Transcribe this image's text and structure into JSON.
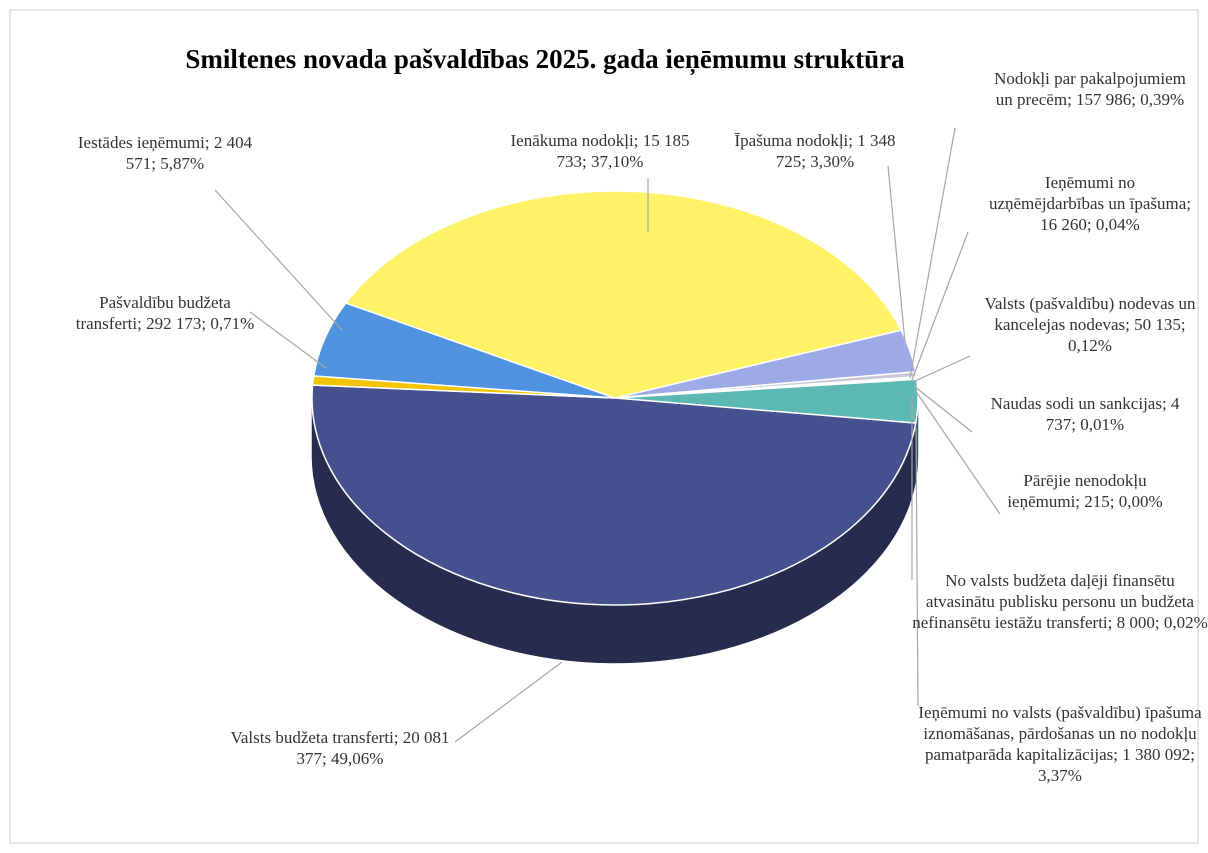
{
  "chart_data": {
    "type": "pie",
    "title": "Smiltenes novada pašvaldības 2025. gada ieņēmumu struktūra",
    "label_separator": "; ",
    "categories": [
      "Ienākuma nodokļi",
      "Īpašuma nodokļi",
      "Nodokļi par pakalpojumiem un precēm",
      "Ieņēmumi no uzņēmējdarbības un īpašuma",
      "Valsts (pašvaldību) nodevas un kancelejas nodevas",
      "Naudas sodi un sankcijas",
      "Pārējie nenodokļu ieņēmumi",
      "No valsts budžeta daļēji finansētu atvasinātu publisku personu un budžeta nefinansētu iestāžu transferti",
      "Ieņēmumi no valsts (pašvaldību) īpašuma iznomāšanas, pārdošanas un no nodokļu pamatparāda kapitalizācijas",
      "Valsts budžeta transferti",
      "Pašvaldību budžeta transferti",
      "Iestādes ieņēmumi"
    ],
    "values": [
      15185733,
      1348725,
      157986,
      16260,
      50135,
      4737,
      215,
      8000,
      1380092,
      20081377,
      292173,
      2404571
    ],
    "value_labels": [
      "15 185 733",
      "1 348 725",
      "157 986",
      "16 260",
      "50 135",
      "4 737",
      "215",
      "8 000",
      "1 380 092",
      "20 081 377",
      "292 173",
      "2 404 571"
    ],
    "percents": [
      37.1,
      3.3,
      0.39,
      0.04,
      0.12,
      0.01,
      0.0,
      0.02,
      3.37,
      49.06,
      0.71,
      5.87
    ],
    "percent_labels": [
      "37,10%",
      "3,30%",
      "0,39%",
      "0,04%",
      "0,12%",
      "0,01%",
      "0,00%",
      "0,02%",
      "3,37%",
      "49,06%",
      "0,71%",
      "5,87%"
    ],
    "colors": [
      "#fff266",
      "#9eaae6",
      "#c8c8d8",
      "#8fd0c8",
      "#b0b8e8",
      "#e0c890",
      "#a0a0a0",
      "#d0d0f0",
      "#5cb8b2",
      "#46508f",
      "#f2c300",
      "#4f93e0"
    ]
  }
}
